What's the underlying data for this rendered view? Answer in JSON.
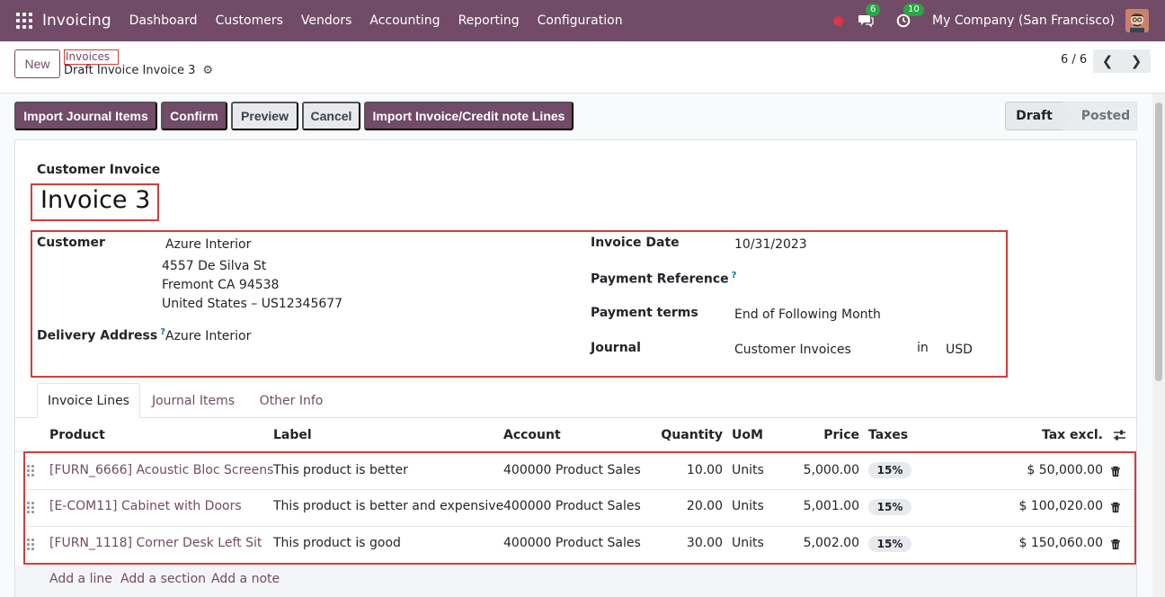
{
  "navbar": {
    "app_name": "Invoicing",
    "menu": [
      "Dashboard",
      "Customers",
      "Vendors",
      "Accounting",
      "Reporting",
      "Configuration"
    ],
    "messages_count": "6",
    "activities_count": "10",
    "company": "My Company (San Francisco)"
  },
  "control_panel": {
    "new_label": "New",
    "breadcrumb_parent": "Invoices",
    "breadcrumb_current": "Draft Invoice Invoice 3",
    "pager": "6 / 6"
  },
  "actions": {
    "import_journal": "Import Journal Items",
    "confirm": "Confirm",
    "preview": "Preview",
    "cancel": "Cancel",
    "import_lines": "Import Invoice/Credit note Lines"
  },
  "status": {
    "draft": "Draft",
    "posted": "Posted"
  },
  "invoice": {
    "type": "Customer Invoice",
    "name": "Invoice 3",
    "customer_label": "Customer",
    "customer_name": "Azure Interior",
    "address_line1": "4557 De Silva St",
    "address_line2": "Fremont CA 94538",
    "address_line3": "United States – US12345677",
    "delivery_label": "Delivery Address",
    "delivery_value": "Azure Interior",
    "invoice_date_label": "Invoice Date",
    "invoice_date": "10/31/2023",
    "payment_ref_label": "Payment Reference",
    "payment_terms_label": "Payment terms",
    "payment_terms": "End of Following Month",
    "journal_label": "Journal",
    "journal": "Customer Invoices",
    "journal_in": "in",
    "currency": "USD",
    "help_mark": "?"
  },
  "tabs": [
    "Invoice Lines",
    "Journal Items",
    "Other Info"
  ],
  "table": {
    "headers": {
      "product": "Product",
      "label": "Label",
      "account": "Account",
      "quantity": "Quantity",
      "uom": "UoM",
      "price": "Price",
      "taxes": "Taxes",
      "tax_excl": "Tax excl."
    },
    "rows": [
      {
        "product": "[FURN_6666] Acoustic Bloc Screens",
        "label": "This product is better",
        "account": "400000 Product Sales",
        "quantity": "10.00",
        "uom": "Units",
        "price": "5,000.00",
        "tax": "15%",
        "subtotal": "$ 50,000.00"
      },
      {
        "product": "[E-COM11] Cabinet with Doors",
        "label": "This product is better and expensive",
        "account": "400000 Product Sales",
        "quantity": "20.00",
        "uom": "Units",
        "price": "5,001.00",
        "tax": "15%",
        "subtotal": "$ 100,020.00"
      },
      {
        "product": "[FURN_1118] Corner Desk Left Sit",
        "label": "This product is good",
        "account": "400000 Product Sales",
        "quantity": "30.00",
        "uom": "Units",
        "price": "5,002.00",
        "tax": "15%",
        "subtotal": "$ 150,060.00"
      }
    ],
    "add_line": "Add a line",
    "add_section": "Add a section",
    "add_note": "Add a note"
  },
  "colors": {
    "brand": "#714b67",
    "highlight": "#d83a3a"
  }
}
